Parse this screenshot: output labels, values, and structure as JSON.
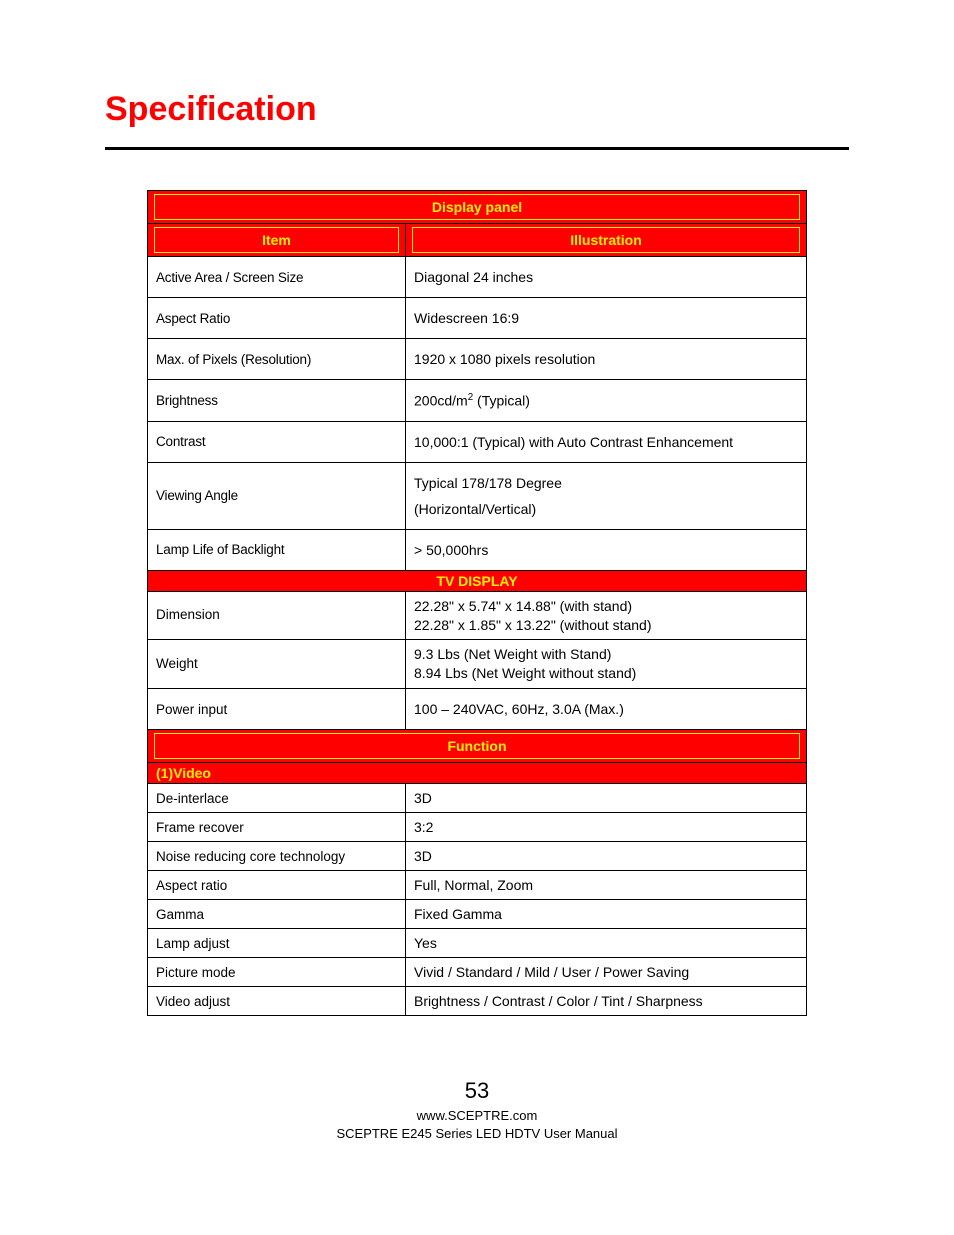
{
  "title": "Specification",
  "colors": {
    "title": "#ff0000",
    "header_bg": "#ff0000",
    "header_text": "#fff000",
    "rule": "#000000",
    "border": "#000000",
    "text": "#000000",
    "background": "#ffffff"
  },
  "table": {
    "section1": {
      "header": "Display panel",
      "col_item": "Item",
      "col_illustration": "Illustration",
      "rows": [
        {
          "item": "Active Area / Screen Size",
          "value": "Diagonal 24 inches"
        },
        {
          "item": "Aspect Ratio",
          "value": "Widescreen 16:9"
        },
        {
          "item": "Max. of Pixels (Resolution)",
          "value": "1920 x 1080 pixels resolution"
        },
        {
          "item": "Brightness",
          "value_html": "200cd/m<sup>2</sup> (Typical)"
        },
        {
          "item": "Contrast",
          "value": "10,000:1 (Typical) with Auto Contrast Enhancement"
        },
        {
          "item": "Viewing Angle",
          "value_line1": "Typical 178/178 Degree",
          "value_line2": "(Horizontal/Vertical)"
        },
        {
          "item": "Lamp Life of Backlight",
          "value": "> 50,000hrs"
        }
      ]
    },
    "section2": {
      "header": "TV DISPLAY",
      "rows": [
        {
          "item": "Dimension",
          "value_line1": "22.28\" x 5.74\" x 14.88\" (with stand)",
          "value_line2": "22.28\" x 1.85\" x 13.22\" (without stand)"
        },
        {
          "item": "Weight",
          "value_line1": "9.3 Lbs (Net Weight with Stand)",
          "value_line2": "8.94 Lbs (Net Weight without stand)"
        },
        {
          "item": "Power input",
          "value": "100 – 240VAC, 60Hz, 3.0A (Max.)"
        }
      ]
    },
    "section3": {
      "header": "Function",
      "subheader": "(1)Video",
      "rows": [
        {
          "item": "De-interlace",
          "value": "3D"
        },
        {
          "item": "Frame recover",
          "value": "3:2"
        },
        {
          "item": "Noise reducing core technology",
          "value": "3D"
        },
        {
          "item": "Aspect ratio",
          "value": "Full, Normal, Zoom"
        },
        {
          "item": "Gamma",
          "value": "Fixed Gamma"
        },
        {
          "item": "Lamp adjust",
          "value": "Yes"
        },
        {
          "item": "Picture mode",
          "value": "Vivid / Standard / Mild / User / Power Saving"
        },
        {
          "item": "Video adjust",
          "value": "Brightness / Contrast / Color / Tint / Sharpness"
        }
      ]
    }
  },
  "footer": {
    "page_number": "53",
    "url": "www.SCEPTRE.com",
    "manual": "SCEPTRE E245 Series LED HDTV User Manual"
  }
}
